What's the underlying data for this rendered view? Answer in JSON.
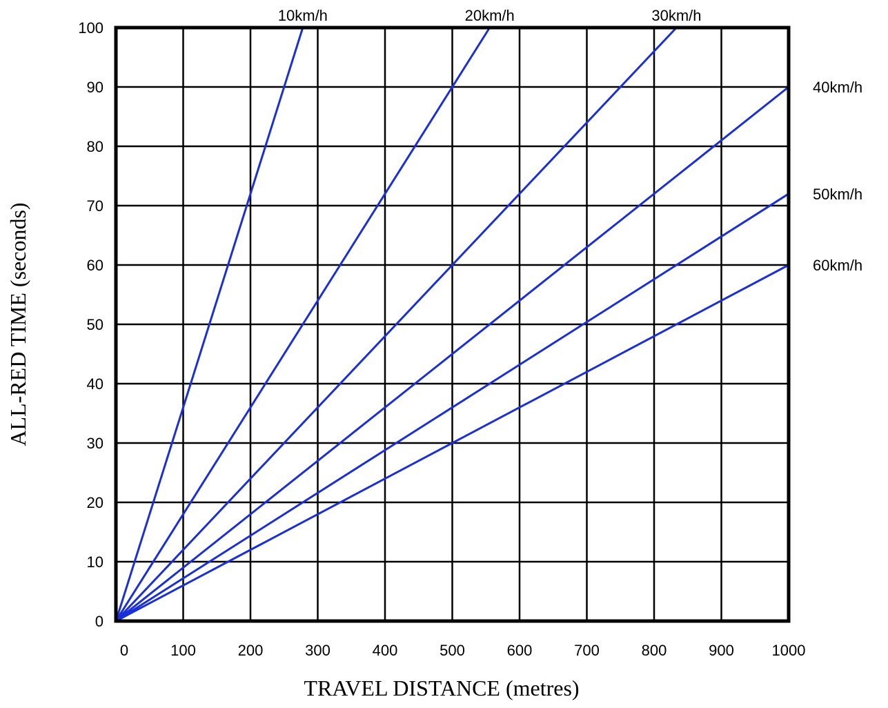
{
  "chart_data": {
    "type": "line",
    "title": "",
    "xlabel": "TRAVEL DISTANCE (metres)",
    "ylabel": "ALL-RED TIME (seconds)",
    "xlim": [
      0,
      1000
    ],
    "ylim": [
      0,
      100
    ],
    "x_ticks": [
      "0",
      "100",
      "200",
      "300",
      "400",
      "500",
      "600",
      "700",
      "800",
      "900",
      "1000"
    ],
    "y_ticks": [
      "0",
      "10",
      "20",
      "30",
      "40",
      "50",
      "60",
      "70",
      "80",
      "90",
      "100"
    ],
    "grid": true,
    "line_color": "#1a2fd6",
    "grid_color": "#000000",
    "series": [
      {
        "name": "10km/h",
        "x": [
          0,
          277.8
        ],
        "y": [
          0,
          100
        ]
      },
      {
        "name": "20km/h",
        "x": [
          0,
          555.6
        ],
        "y": [
          0,
          100
        ]
      },
      {
        "name": "30km/h",
        "x": [
          0,
          833.3
        ],
        "y": [
          0,
          100
        ]
      },
      {
        "name": "40km/h",
        "x": [
          0,
          1000
        ],
        "y": [
          0,
          90
        ]
      },
      {
        "name": "50km/h",
        "x": [
          0,
          1000
        ],
        "y": [
          0,
          72
        ]
      },
      {
        "name": "60km/h",
        "x": [
          0,
          1000
        ],
        "y": [
          0,
          60
        ]
      }
    ]
  }
}
